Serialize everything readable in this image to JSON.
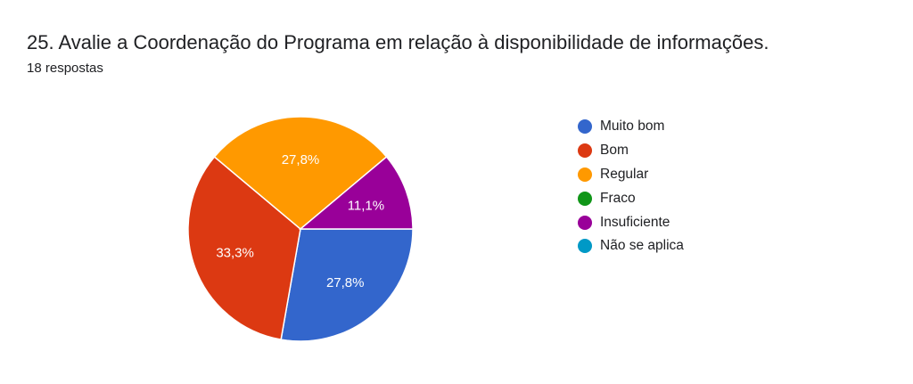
{
  "header": {
    "title": "25. Avalie a Coordenação do Programa em relação à disponibilidade de informações.",
    "responses": "18 respostas"
  },
  "chart_data": {
    "type": "pie",
    "categories": [
      "Muito bom",
      "Bom",
      "Regular",
      "Fraco",
      "Insuficiente",
      "Não se aplica"
    ],
    "values": [
      5,
      6,
      5,
      0,
      2,
      0
    ],
    "labels": [
      "27,8%",
      "33,3%",
      "27,8%",
      "",
      "11,1%",
      ""
    ],
    "colors": [
      "#3366cc",
      "#dc3912",
      "#ff9900",
      "#109618",
      "#990099",
      "#0099c6"
    ],
    "legend": "right"
  }
}
